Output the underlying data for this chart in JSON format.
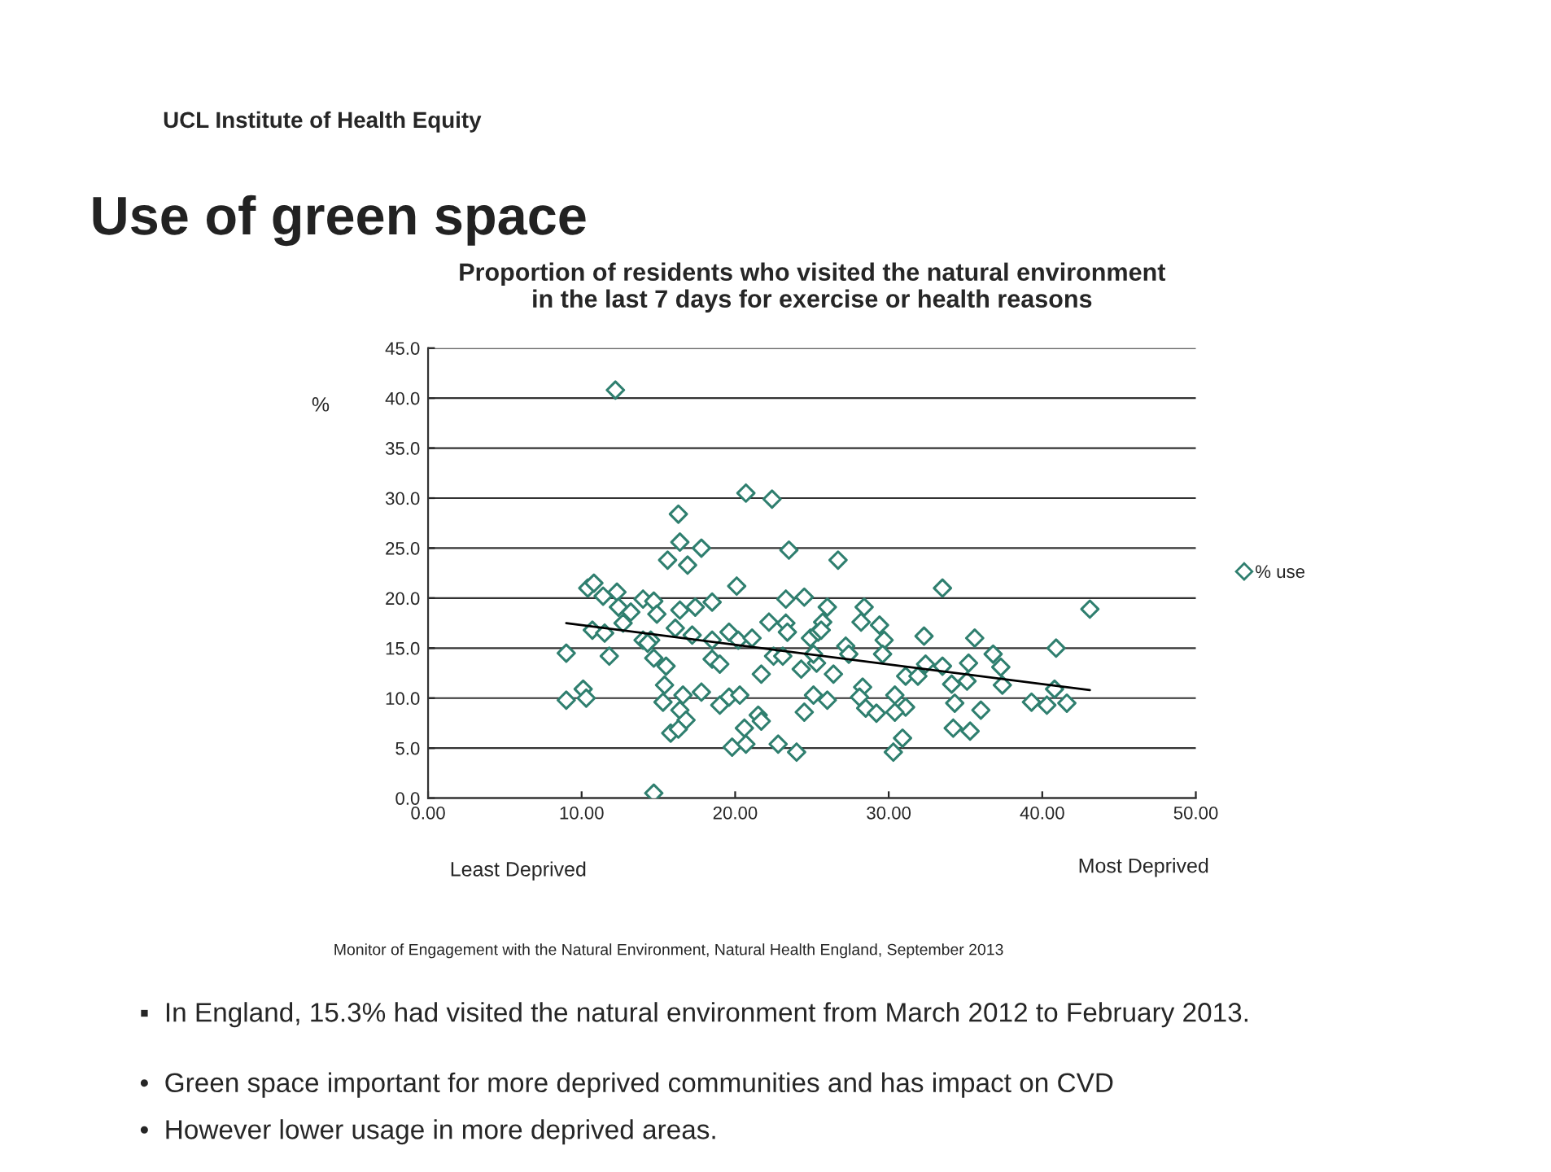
{
  "chart_data": {
    "type": "scatter",
    "title": "Use of green space",
    "subtitle": "Proportion of residents who visited the natural environment\nin the last 7 days for exercise or health reasons",
    "ylabel": "%",
    "annotations": [
      "UCL Institute of Health Equity",
      "Least Deprived",
      "Most Deprived",
      "Monitor of Engagement with the Natural Environment, Natural Health England, September 2013",
      "▪  In England, 15.3% had visited the natural environment from March 2012 to February 2013.",
      "•  Green space important for more deprived communities and has impact on CVD",
      "•  However lower usage in more deprived areas."
    ],
    "xlim": [
      0,
      50
    ],
    "ylim": [
      0,
      45
    ],
    "xticks": [
      {
        "value": 0,
        "label": "0.00"
      },
      {
        "value": 10,
        "label": "10.00"
      },
      {
        "value": 20,
        "label": "20.00"
      },
      {
        "value": 30,
        "label": "30.00"
      },
      {
        "value": 40,
        "label": "40.00"
      },
      {
        "value": 50,
        "label": "50.00"
      }
    ],
    "yticks": [
      {
        "value": 0,
        "label": "0.0"
      },
      {
        "value": 5,
        "label": "5.0"
      },
      {
        "value": 10,
        "label": "10.0"
      },
      {
        "value": 15,
        "label": "15.0"
      },
      {
        "value": 20,
        "label": "20.0"
      },
      {
        "value": 25,
        "label": "25.0"
      },
      {
        "value": 30,
        "label": "30.0"
      },
      {
        "value": 35,
        "label": "35.0"
      },
      {
        "value": 40,
        "label": "40.0"
      },
      {
        "value": 45,
        "label": "45.0"
      }
    ],
    "grid": "y",
    "legend": "right",
    "marker": "diamond",
    "series": [
      {
        "name": "% use",
        "color": "#2f7f6f",
        "x": [
          12.2,
          20.7,
          22.4,
          16.3,
          16.4,
          17.8,
          15.6,
          16.9,
          23.5,
          26.7,
          10.4,
          10.8,
          11.4,
          12.3,
          12.4,
          13.2,
          14.0,
          14.7,
          14.9,
          16.4,
          17.4,
          18.5,
          20.1,
          23.3,
          24.5,
          12.7,
          10.7,
          11.5,
          14.0,
          14.5,
          16.1,
          17.2,
          18.5,
          19.6,
          20.2,
          21.1,
          22.2,
          23.3,
          23.4,
          24.9,
          25.4,
          9.0,
          11.8,
          14.3,
          14.7,
          15.5,
          18.5,
          19.0,
          21.7,
          22.5,
          23.1,
          24.3,
          25.3,
          9.0,
          10.1,
          10.3,
          15.4,
          15.3,
          16.4,
          16.6,
          17.8,
          19.0,
          19.6,
          20.3,
          16.8,
          15.8,
          16.3,
          20.6,
          21.5,
          21.7,
          19.8,
          20.7,
          22.8,
          24.0,
          24.5,
          25.1,
          14.7,
          33.5,
          26.0,
          28.4,
          28.2,
          29.4,
          25.7,
          25.6,
          29.7,
          32.3,
          35.6,
          43.1,
          40.9,
          27.2,
          27.4,
          29.6,
          25.1,
          36.8,
          35.2,
          37.3,
          32.4,
          33.5,
          26.4,
          31.1,
          31.9,
          35.1,
          37.4,
          34.1,
          40.8,
          28.3,
          28.1,
          26.0,
          30.4,
          31.1,
          28.5,
          29.2,
          30.4,
          34.3,
          36.0,
          39.3,
          40.3,
          41.6,
          34.2,
          35.3,
          30.9,
          30.3
        ],
        "values": [
          40.8,
          30.5,
          29.9,
          28.4,
          25.6,
          25.0,
          23.8,
          23.3,
          24.8,
          23.8,
          21.0,
          21.5,
          20.2,
          20.6,
          19.1,
          18.6,
          19.9,
          19.7,
          18.4,
          18.8,
          19.1,
          19.6,
          21.2,
          19.9,
          20.1,
          17.5,
          16.8,
          16.5,
          15.8,
          15.8,
          17.0,
          16.3,
          15.8,
          16.6,
          15.8,
          16.0,
          17.6,
          17.5,
          16.6,
          16.0,
          16.6,
          14.5,
          14.2,
          15.5,
          14.0,
          13.2,
          13.9,
          13.4,
          12.4,
          14.2,
          14.2,
          12.9,
          13.5,
          9.8,
          10.9,
          10.0,
          11.3,
          9.6,
          8.8,
          10.3,
          10.6,
          9.3,
          10.1,
          10.3,
          7.8,
          6.5,
          6.9,
          7.0,
          8.3,
          7.7,
          5.1,
          5.4,
          5.4,
          4.6,
          8.6,
          10.3,
          0.5,
          21.0,
          19.1,
          19.1,
          17.6,
          17.3,
          17.6,
          16.8,
          15.8,
          16.2,
          16.0,
          18.9,
          15.0,
          15.2,
          14.4,
          14.4,
          14.4,
          14.4,
          13.5,
          13.1,
          13.4,
          13.2,
          12.4,
          12.2,
          12.2,
          11.7,
          11.3,
          11.4,
          10.9,
          11.1,
          10.1,
          9.8,
          10.3,
          9.1,
          9.0,
          8.5,
          8.6,
          9.5,
          8.8,
          9.6,
          9.3,
          9.5,
          7.0,
          6.7,
          6.0,
          4.6
        ]
      },
      {
        "type": "line",
        "color": "#000000",
        "marker": "none",
        "x": [
          9.0,
          43.1
        ],
        "values": [
          17.5,
          10.8
        ]
      }
    ]
  }
}
